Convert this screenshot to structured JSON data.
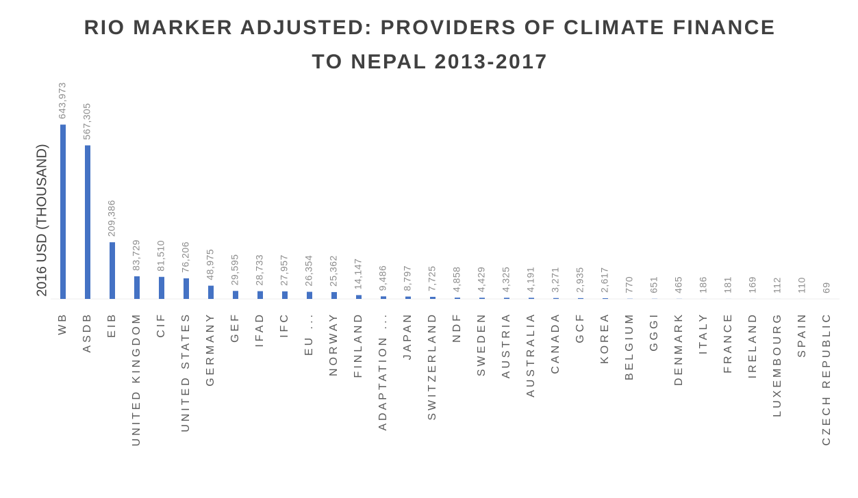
{
  "chart_data": {
    "type": "bar",
    "title": [
      "RIO MARKER ADJUSTED: PROVIDERS OF CLIMATE FINANCE",
      "TO NEPAL 2013-2017"
    ],
    "y_label": "2016 USD (THOUSAND)",
    "categories": [
      "WB",
      "ASDB",
      "EIB",
      "UNITED KINGDOM",
      "CIF",
      "UNITED STATES",
      "GERMANY",
      "GEF",
      "IFAD",
      "IFC",
      "EU ...",
      "NORWAY",
      "FINLAND",
      "ADAPTATION ...",
      "JAPAN",
      "SWITZERLAND",
      "NDF",
      "SWEDEN",
      "AUSTRIA",
      "AUSTRALIA",
      "CANADA",
      "GCF",
      "KOREA",
      "BELGIUM",
      "GGGI",
      "DENMARK",
      "ITALY",
      "FRANCE",
      "IRELAND",
      "LUXEMBOURG",
      "SPAIN",
      "CZECH REPUBLIC"
    ],
    "values": [
      643973,
      567305,
      209386,
      83729,
      81510,
      76206,
      48975,
      29595,
      28733,
      27957,
      26354,
      25362,
      14147,
      9486,
      8797,
      7725,
      4858,
      4429,
      4325,
      4191,
      3271,
      2935,
      2617,
      770,
      651,
      465,
      186,
      181,
      169,
      112,
      110,
      69
    ],
    "value_labels": [
      "643,973",
      "567,305",
      "209,386",
      "83,729",
      "81,510",
      "76,206",
      "48,975",
      "29,595",
      "28,733",
      "27,957",
      "26,354",
      "25,362",
      "14,147",
      "9,486",
      "8,797",
      "7,725",
      "4,858",
      "4,429",
      "4,325",
      "4,191",
      "3,271",
      "2,935",
      "2,617",
      "770",
      "651",
      "465",
      "186",
      "181",
      "169",
      "112",
      "110",
      "69"
    ],
    "color": "#4472c4",
    "ylim": [
      0,
      700000
    ]
  }
}
